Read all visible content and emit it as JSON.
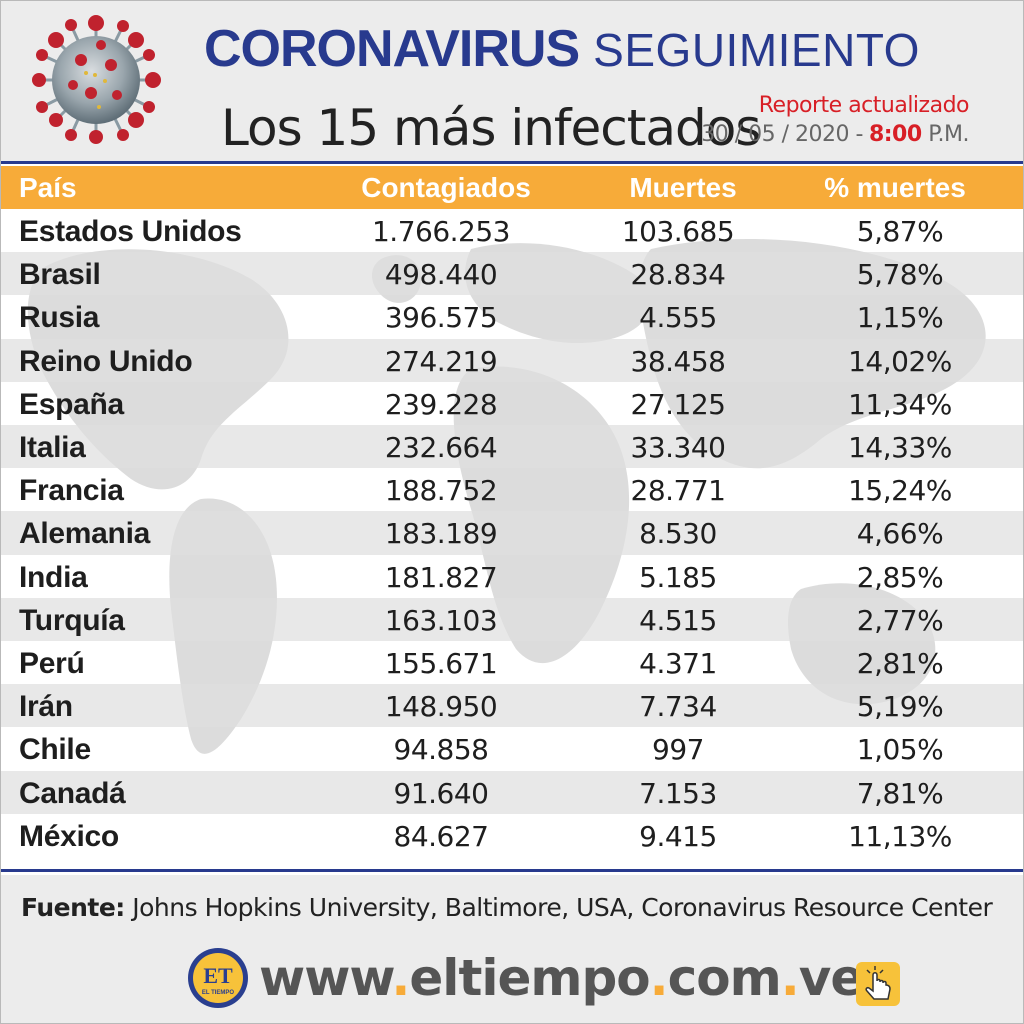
{
  "header": {
    "title_main": "CORONAVIRUS",
    "title_secondary": "SEGUIMIENTO",
    "subtitle": "Los 15 más infectados",
    "report_label": "Reporte actualizado",
    "report_date": "30 / 05 / 2020 -",
    "report_time": "8:00",
    "report_ampm": "P.M."
  },
  "colors": {
    "title_blue": "#283a8e",
    "header_orange": "#f7ab39",
    "accent_red": "#d81f26",
    "header_bg": "#ececec"
  },
  "icons": [
    "virus-icon",
    "world-map-icon",
    "eltiempo-logo-icon",
    "click-hand-icon"
  ],
  "chart_data": {
    "type": "table",
    "columns": [
      "País",
      "Contagiados",
      "Muertes",
      "% muertes"
    ],
    "rows": [
      [
        "Estados Unidos",
        "1.766.253",
        "103.685",
        "5,87%"
      ],
      [
        "Brasil",
        "498.440",
        "28.834",
        "5,78%"
      ],
      [
        "Rusia",
        "396.575",
        "4.555",
        "1,15%"
      ],
      [
        "Reino Unido",
        "274.219",
        "38.458",
        "14,02%"
      ],
      [
        "España",
        "239.228",
        "27.125",
        "11,34%"
      ],
      [
        "Italia",
        "232.664",
        "33.340",
        "14,33%"
      ],
      [
        "Francia",
        "188.752",
        "28.771",
        "15,24%"
      ],
      [
        "Alemania",
        "183.189",
        "8.530",
        "4,66%"
      ],
      [
        "India",
        "181.827",
        "5.185",
        "2,85%"
      ],
      [
        "Turquía",
        "163.103",
        "4.515",
        "2,77%"
      ],
      [
        "Perú",
        "155.671",
        "4.371",
        "2,81%"
      ],
      [
        "Irán",
        "148.950",
        "7.734",
        "5,19%"
      ],
      [
        "Chile",
        "94.858",
        "997",
        "1,05%"
      ],
      [
        "Canadá",
        "91.640",
        "7.153",
        "7,81%"
      ],
      [
        "México",
        "84.627",
        "9.415",
        "11,13%"
      ]
    ]
  },
  "footer": {
    "source_label": "Fuente:",
    "source_text": "Johns Hopkins University, Baltimore, USA, Coronavirus Resource Center",
    "logo_text": "ET",
    "logo_subtext": "EL TIEMPO",
    "url_www": "www",
    "url_dot": ".",
    "url_name": "eltiempo",
    "url_com": "com",
    "url_ve": "ve"
  }
}
